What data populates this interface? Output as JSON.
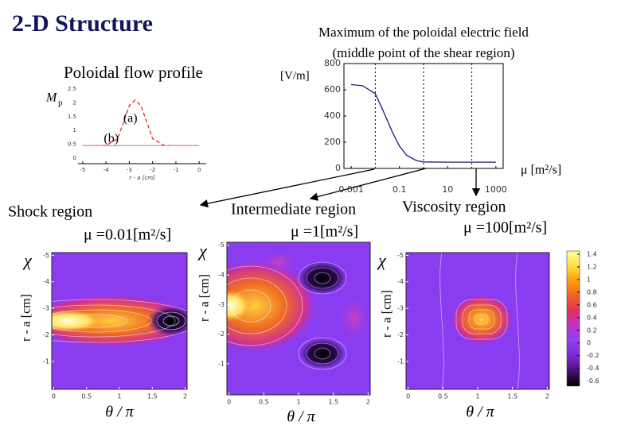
{
  "slide": {
    "title": "2-D Structure",
    "regions": [
      {
        "name": "Shock region",
        "mu": "μ =0.01[m²/s]"
      },
      {
        "name": "Intermediate region",
        "mu": "μ =1[m²/s]"
      },
      {
        "name": "Viscosity region",
        "mu": "μ =100[m²/s]"
      }
    ]
  },
  "chart_data": [
    {
      "type": "line",
      "title": "Poloidal flow profile",
      "ylabel": "M",
      "ylabel_sub": "p",
      "xlabel": "r - a [cm]",
      "x": [
        -5,
        -4.5,
        -4,
        -3.5,
        -3.25,
        -3,
        -2.75,
        -2.5,
        -2.25,
        -2,
        -1.5,
        -1,
        -0.5,
        0
      ],
      "series": [
        {
          "name": "(a)",
          "color": "#e03030",
          "dashed": true,
          "values": [
            0.45,
            0.45,
            0.46,
            0.7,
            1.3,
            1.9,
            2.1,
            1.9,
            1.3,
            0.7,
            0.46,
            0.45,
            0.45,
            0.45
          ]
        },
        {
          "name": "(b)",
          "color": "#d89090",
          "dashed": false,
          "values": [
            0.45,
            0.45,
            0.45,
            0.45,
            0.45,
            0.45,
            0.45,
            0.45,
            0.45,
            0.45,
            0.45,
            0.45,
            0.45,
            0.45
          ]
        }
      ],
      "xlim": [
        -5.2,
        0.3
      ],
      "ylim": [
        -0.2,
        2.7
      ],
      "xticks": [
        -5,
        -4,
        -3,
        -2,
        -1,
        0
      ],
      "yticks": [
        0,
        0.5,
        1,
        1.5,
        2,
        2.5
      ]
    },
    {
      "type": "line",
      "log_x": true,
      "title": "Maximum of the poloidal electric field",
      "subtitle": "(middle point of the shear region)",
      "ylabel": "[V/m]",
      "xlabel": "μ [m²/s]",
      "x": [
        0.001,
        0.003,
        0.01,
        0.02,
        0.05,
        0.1,
        0.2,
        0.5,
        1,
        10,
        100,
        1000
      ],
      "series": [
        {
          "color": "#1a1a80",
          "values": [
            640,
            630,
            570,
            450,
            280,
            170,
            100,
            60,
            50,
            48,
            48,
            48
          ]
        }
      ],
      "markers": [
        0.01,
        1,
        100
      ],
      "xlim": [
        0.0005,
        2000
      ],
      "ylim": [
        0,
        800
      ],
      "xticks": [
        0.001,
        0.1,
        10,
        1000
      ],
      "yticks": [
        0,
        200,
        400,
        600,
        800
      ]
    },
    {
      "type": "heatmap",
      "ylabel_symbol": "χ",
      "ylabel": "r - a [cm]",
      "xlabel": "θ / π",
      "xlim": [
        -0.03,
        2.03
      ],
      "ylim": [
        0.05,
        -5.1
      ],
      "xticks": [
        0,
        0.5,
        1,
        1.5,
        2
      ],
      "yticks": [
        -5,
        -4,
        -3,
        -2,
        -1
      ]
    },
    {
      "type": "heatmap",
      "ylabel_symbol": "χ",
      "ylabel": "r - a [cm]",
      "xlabel": "θ / π",
      "xlim": [
        -0.03,
        2.03
      ],
      "ylim": [
        0.05,
        -5.1
      ],
      "xticks": [
        0,
        0.5,
        1,
        1.5,
        2
      ],
      "yticks": [
        -5,
        -4,
        -3,
        -2,
        -1
      ]
    },
    {
      "type": "heatmap",
      "ylabel_symbol": "χ",
      "ylabel": "r - a [cm]",
      "xlabel": "θ / π",
      "xlim": [
        -0.03,
        2.03
      ],
      "ylim": [
        0.05,
        -5.1
      ],
      "xticks": [
        0,
        0.5,
        1,
        1.5,
        2
      ],
      "yticks": [
        -5,
        -4,
        -3,
        -2,
        -1
      ],
      "colorbar": {
        "lim": [
          -0.68,
          1.45
        ],
        "ticks": [
          1.4,
          1.2,
          1,
          0.8,
          0.6,
          0.4,
          0.2,
          0,
          -0.2,
          -0.4,
          -0.6
        ],
        "colors": [
          "#000000",
          "#4a1070",
          "#7a28d8",
          "#9040f0",
          "#c030d0",
          "#e03060",
          "#f06020",
          "#ff9a10",
          "#ffe040",
          "#ffffa0"
        ]
      }
    }
  ]
}
